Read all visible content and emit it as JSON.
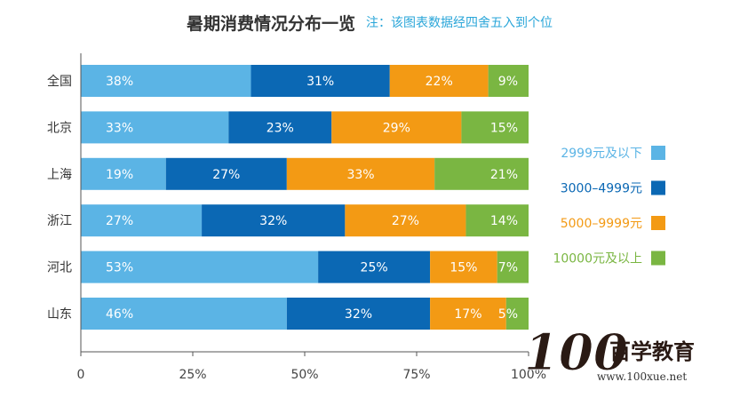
{
  "chart_data": {
    "type": "bar",
    "orientation": "horizontal",
    "stacked": "percent",
    "title": "暑期消费情况分布一览",
    "note": "注：该图表数据经四舍五入到个位",
    "categories": [
      "全国",
      "北京",
      "上海",
      "浙江",
      "河北",
      "山东"
    ],
    "series": [
      {
        "name": "2999元及以下",
        "color": "#5bb4e5",
        "values": [
          38,
          33,
          19,
          27,
          53,
          46
        ]
      },
      {
        "name": "3000–4999元",
        "color": "#0b68b4",
        "values": [
          31,
          23,
          27,
          32,
          25,
          32
        ]
      },
      {
        "name": "5000–9999元",
        "color": "#f39a14",
        "values": [
          22,
          29,
          33,
          27,
          15,
          17
        ]
      },
      {
        "name": "10000元及以上",
        "color": "#7ab642",
        "values": [
          9,
          15,
          21,
          14,
          7,
          5
        ]
      }
    ],
    "x_ticks": [
      "0",
      "25%",
      "50%",
      "75%",
      "100%"
    ],
    "xlim": [
      0,
      100
    ],
    "legend_position": "right",
    "grid": false
  },
  "watermark": {
    "logo_number": "100",
    "name": "百学教育",
    "url": "www.100xue.net"
  }
}
